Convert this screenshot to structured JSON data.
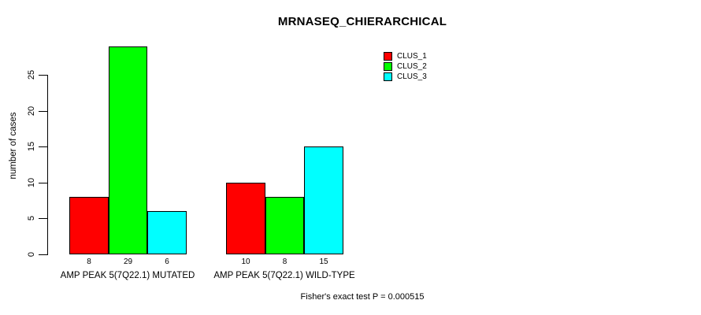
{
  "title": "MRNASEQ_CHIERARCHICAL",
  "footer": "Fisher's exact test P = 0.000515",
  "chart_data": {
    "type": "bar",
    "title": "MRNASEQ_CHIERARCHICAL",
    "xlabel": "",
    "ylabel": "number of cases",
    "categories": [
      "AMP PEAK 5(7Q22.1) MUTATED",
      "AMP PEAK 5(7Q22.1) WILD-TYPE"
    ],
    "series": [
      {
        "name": "CLUS_1",
        "color": "#ff0000",
        "values": [
          8,
          10
        ]
      },
      {
        "name": "CLUS_2",
        "color": "#00ff00",
        "values": [
          29,
          8
        ]
      },
      {
        "name": "CLUS_3",
        "color": "#00ffff",
        "values": [
          6,
          15
        ]
      }
    ],
    "bar_value_labels": [
      [
        "8",
        "29",
        "6"
      ],
      [
        "10",
        "8",
        "15"
      ]
    ],
    "yticks": [
      0,
      5,
      10,
      15,
      20,
      25
    ],
    "ylim": [
      0,
      25
    ],
    "grid": false,
    "legend_position": "top-right",
    "annotation": "Fisher's exact test P = 0.000515"
  }
}
